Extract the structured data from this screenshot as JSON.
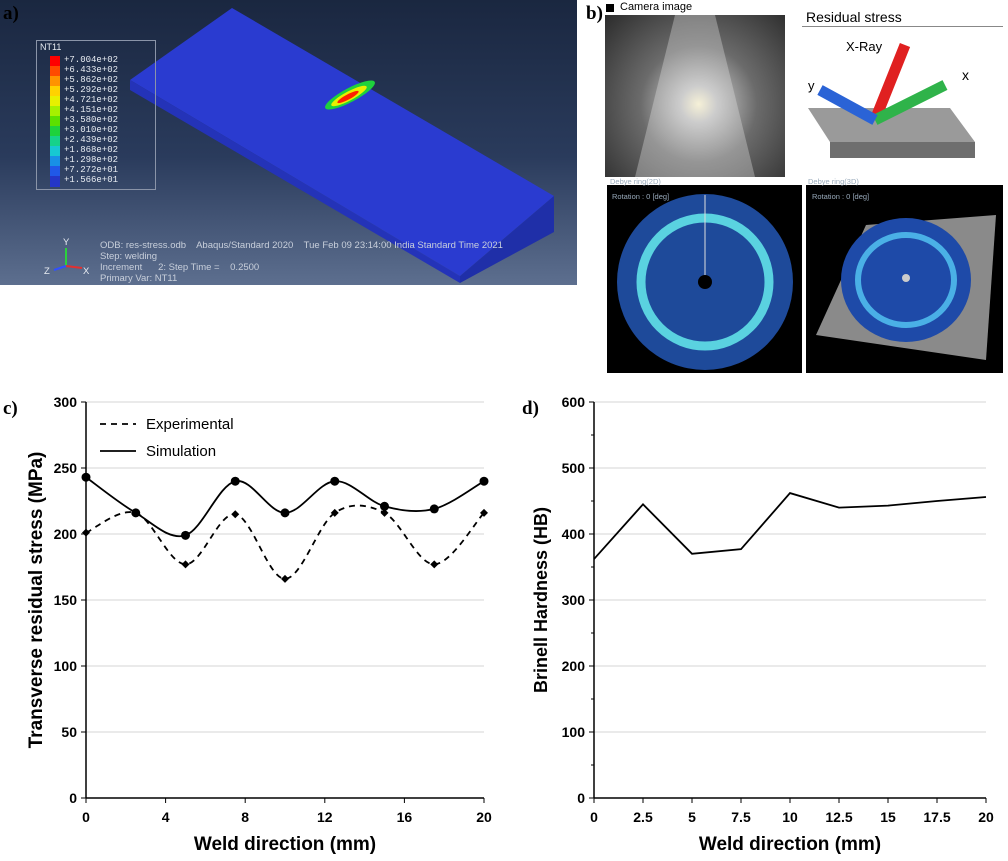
{
  "panel_labels": {
    "a": "a)",
    "b": "b)",
    "c": "c)",
    "d": "d)"
  },
  "panel_a": {
    "legend_title": "NT11",
    "legend_values": [
      "+7.004e+02",
      "+6.433e+02",
      "+5.862e+02",
      "+5.292e+02",
      "+4.721e+02",
      "+4.151e+02",
      "+3.580e+02",
      "+3.010e+02",
      "+2.439e+02",
      "+1.868e+02",
      "+1.298e+02",
      "+7.272e+01",
      "+1.566e+01"
    ],
    "legend_colors": [
      "#ff0000",
      "#ff4a00",
      "#ff9300",
      "#ffd200",
      "#e8f000",
      "#a6f000",
      "#5ce000",
      "#1ed23c",
      "#16d28a",
      "#17c8d2",
      "#1890e6",
      "#2058e8",
      "#2436c8"
    ],
    "info_lines": [
      "ODB: res-stress.odb    Abaqus/Standard 2020    Tue Feb 09 23:14:00 India Standard Time 2021",
      "Step: welding",
      "Increment      2: Step Time =    0.2500",
      "Primary Var: NT11"
    ],
    "triad": {
      "y": "Y",
      "z": "Z",
      "x": "X"
    }
  },
  "panel_b": {
    "camera_caption": "Camera image",
    "residual_caption": "Residual stress",
    "xray_label": "X-Ray",
    "y_label": "y",
    "x_label": "x",
    "debye2d_title": "Debye ring(2D)",
    "debye3d_title": "Debye ring(3D)",
    "rotation_label": "Rotation : 0 [deg]"
  },
  "chart_data": [
    {
      "type": "line",
      "panel": "c",
      "title": "",
      "xlabel": "Weld direction (mm)",
      "ylabel": "Transverse residual stress (MPa)",
      "xlim": [
        0,
        20
      ],
      "ylim": [
        0,
        300
      ],
      "xticks": [
        0,
        4,
        8,
        12,
        16,
        20
      ],
      "yticks": [
        0,
        50,
        100,
        150,
        200,
        250,
        300
      ],
      "grid": true,
      "legend_position": "top-left",
      "series": [
        {
          "name": "Experimental",
          "style": "dashed",
          "marker": "diamond",
          "x": [
            0,
            2.5,
            5,
            7.5,
            10,
            12.5,
            15,
            17.5,
            20
          ],
          "values": [
            201,
            216,
            177,
            215,
            166,
            216,
            216,
            177,
            216
          ]
        },
        {
          "name": "Simulation",
          "style": "solid",
          "marker": "circle",
          "x": [
            0,
            2.5,
            5,
            7.5,
            10,
            12.5,
            15,
            17.5,
            20
          ],
          "values": [
            243,
            216,
            199,
            240,
            216,
            240,
            221,
            219,
            240
          ]
        }
      ]
    },
    {
      "type": "line",
      "panel": "d",
      "title": "",
      "xlabel": "Weld direction (mm)",
      "ylabel": "Brinell Hardness (HB)",
      "xlim": [
        0,
        20
      ],
      "ylim": [
        0,
        600
      ],
      "xticks": [
        0,
        2.5,
        5,
        7.5,
        10,
        12.5,
        15,
        17.5,
        20
      ],
      "xtick_labels": [
        "0",
        "2.5",
        "5",
        "7.5",
        "10",
        "12.5",
        "15",
        "17.5",
        "20"
      ],
      "yticks": [
        0,
        100,
        200,
        300,
        400,
        500,
        600
      ],
      "grid": true,
      "series": [
        {
          "name": "Brinell Hardness",
          "style": "solid",
          "marker": "none",
          "x": [
            0,
            2.5,
            5,
            7.5,
            10,
            12.5,
            15,
            17.5,
            20
          ],
          "values": [
            362,
            445,
            370,
            377,
            462,
            440,
            443,
            450,
            456
          ]
        }
      ]
    }
  ]
}
